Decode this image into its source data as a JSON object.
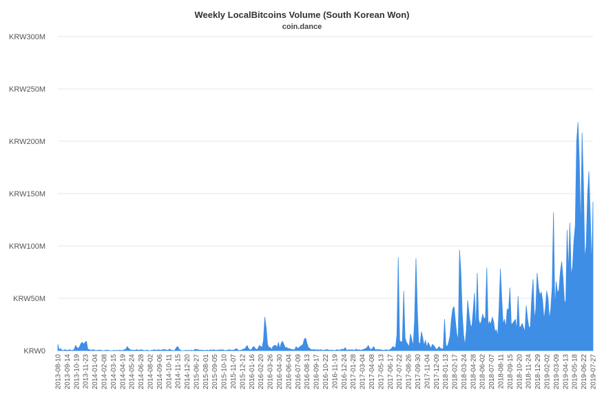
{
  "chart_data": {
    "type": "area",
    "title": "Weekly LocalBitcoins Volume (South Korean Won)",
    "subtitle": "coin.dance",
    "series_color": "#3e8ee6",
    "ylim": [
      0,
      300
    ],
    "y_unit": "M KRW",
    "y_ticks": [
      "KRW0",
      "KRW50M",
      "KRW100M",
      "KRW150M",
      "KRW200M",
      "KRW250M",
      "KRW300M"
    ],
    "y_tick_values": [
      0,
      50,
      100,
      150,
      200,
      250,
      300
    ],
    "x_tick_labels": [
      "2013-08-10",
      "2013-09-14",
      "2013-10-19",
      "2013-11-23",
      "2014-01-04",
      "2014-02-08",
      "2014-03-15",
      "2014-04-19",
      "2014-05-24",
      "2014-06-28",
      "2014-08-02",
      "2014-09-06",
      "2014-10-11",
      "2014-11-15",
      "2014-12-20",
      "2015-06-27",
      "2015-08-01",
      "2015-09-05",
      "2015-10-10",
      "2015-11-07",
      "2015-12-12",
      "2016-01-16",
      "2016-02-20",
      "2016-03-26",
      "2016-04-30",
      "2016-06-04",
      "2016-07-09",
      "2016-08-13",
      "2016-09-17",
      "2016-10-22",
      "2016-11-19",
      "2016-12-24",
      "2017-01-28",
      "2017-03-04",
      "2017-04-08",
      "2017-05-13",
      "2017-06-17",
      "2017-07-22",
      "2017-08-26",
      "2017-09-30",
      "2017-11-04",
      "2017-12-09",
      "2018-01-13",
      "2018-02-17",
      "2018-03-24",
      "2018-04-28",
      "2018-06-02",
      "2018-07-07",
      "2018-08-11",
      "2018-09-15",
      "2018-10-20",
      "2018-11-24",
      "2018-12-29",
      "2019-02-02",
      "2019-03-09",
      "2019-04-13",
      "2019-05-18",
      "2019-06-22",
      "2019-07-27"
    ],
    "values": [
      6,
      0.5,
      2,
      0.5,
      0,
      1,
      0.5,
      0.5,
      0.5,
      1,
      0,
      0.5,
      1,
      5,
      3,
      2,
      4,
      7,
      8,
      6,
      8,
      9,
      1.5,
      1,
      0.5,
      0.5,
      1,
      0.5,
      0,
      0.5,
      0.5,
      0.5,
      0.5,
      0,
      0,
      0.5,
      0.5,
      0.5,
      0,
      0,
      0,
      0.5,
      0,
      0.5,
      0,
      0.5,
      0.5,
      0,
      0.5,
      1,
      1.5,
      4,
      2,
      1,
      0.5,
      0.5,
      0.5,
      0.5,
      1,
      0.5,
      0.5,
      1,
      0.5,
      0.5,
      0,
      0.5,
      0.5,
      0,
      0,
      0.5,
      0.5,
      1,
      0.5,
      0.5,
      1,
      0.5,
      0.5,
      1,
      1,
      1,
      0.5,
      0.5,
      1.5,
      0.5,
      0.5,
      0,
      0.5,
      3,
      4,
      1.5,
      0.5,
      0,
      0,
      0,
      0.5,
      0,
      0.5,
      0,
      0.5,
      0,
      0.5,
      1.5,
      1,
      1,
      0.5,
      0.5,
      0.5,
      0.5,
      0,
      0.5,
      0.5,
      0,
      1,
      0,
      1,
      0.5,
      0.5,
      0.5,
      0.5,
      1,
      0.5,
      1,
      0.5,
      0,
      0.5,
      0.5,
      1,
      0.5,
      0.5,
      0.5,
      1,
      2,
      1,
      0,
      0.5,
      0.5,
      1.5,
      1.5,
      3,
      5,
      2,
      1,
      0.5,
      3,
      4,
      2,
      1,
      2,
      5,
      4,
      3,
      10,
      32,
      22,
      6,
      3,
      3,
      1,
      4,
      5,
      5,
      3,
      8,
      2,
      7,
      9,
      6,
      3,
      3,
      2,
      2,
      1.5,
      1,
      1,
      1,
      4,
      2,
      3,
      4,
      5,
      6,
      11,
      12,
      7,
      3,
      2,
      1,
      1,
      1,
      1,
      0.5,
      1,
      0.5,
      1,
      0.5,
      0.5,
      0.5,
      1,
      1,
      0.5,
      0.5,
      0.5,
      0.5,
      0,
      0.5,
      1,
      0.5,
      0.5,
      1,
      1.5,
      1,
      3,
      0.5,
      0.5,
      1,
      0.5,
      1,
      0.5,
      0.5,
      1.5,
      0.5,
      1,
      0.5,
      0.5,
      1,
      1.5,
      2,
      3,
      5,
      2,
      1,
      2,
      4,
      1,
      1,
      1,
      1,
      1,
      0.5,
      0.5,
      0.5,
      1,
      0.5,
      0.5,
      1,
      2,
      4,
      3,
      3,
      15,
      89,
      10,
      8,
      9,
      57,
      12,
      8,
      6,
      4,
      16,
      10,
      5,
      30,
      88,
      40,
      8,
      6,
      18,
      12,
      5,
      10,
      3,
      8,
      5,
      2,
      6,
      5,
      3,
      1,
      2,
      4,
      2,
      2,
      1,
      30,
      5,
      4,
      8,
      14,
      30,
      40,
      42,
      28,
      16,
      10,
      96,
      75,
      35,
      15,
      5,
      20,
      48,
      35,
      25,
      22,
      38,
      55,
      18,
      74,
      30,
      25,
      28,
      35,
      30,
      32,
      79,
      24,
      28,
      25,
      32,
      28,
      18,
      20,
      14,
      40,
      78,
      50,
      25,
      30,
      22,
      40,
      38,
      60,
      25,
      26,
      28,
      30,
      20,
      52,
      22,
      23,
      26,
      22,
      18,
      43,
      30,
      22,
      23,
      50,
      68,
      30,
      40,
      74,
      60,
      53,
      56,
      48,
      30,
      40,
      57,
      50,
      30,
      40,
      60,
      132,
      40,
      66,
      55,
      58,
      75,
      85,
      70,
      48,
      45,
      115,
      75,
      122,
      72,
      80,
      105,
      120,
      200,
      218,
      180,
      113,
      208,
      160,
      88,
      100,
      148,
      171,
      130,
      80,
      142
    ]
  }
}
